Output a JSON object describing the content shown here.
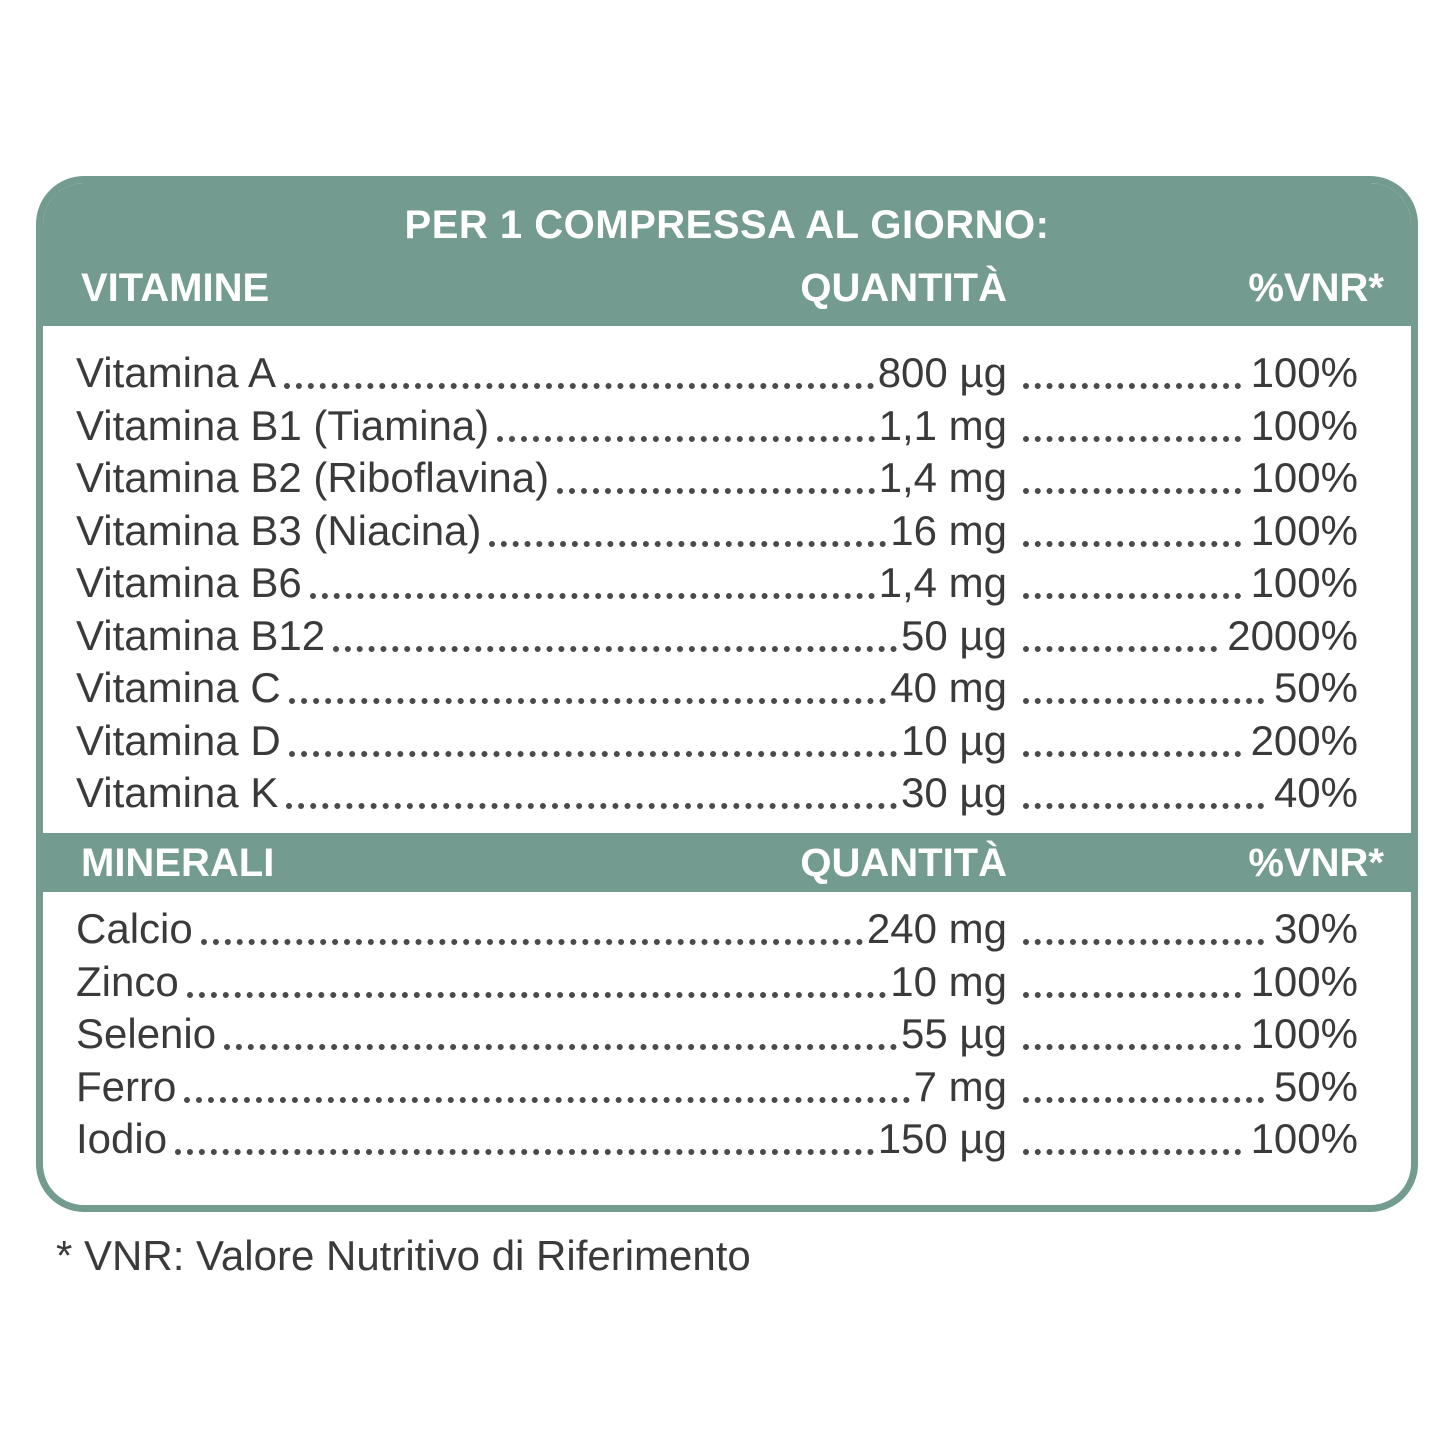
{
  "header": {
    "title": "PER 1 COMPRESSA AL GIORNO:"
  },
  "vitamins": {
    "heading": "VITAMINE",
    "qty_heading": "QUANTITÀ",
    "vnr_heading": "%VNR*",
    "rows": [
      {
        "name": "Vitamina A",
        "qty": "800 µg",
        "vnr": "100%"
      },
      {
        "name": "Vitamina B1 (Tiamina)",
        "qty": "1,1 mg",
        "vnr": "100%"
      },
      {
        "name": "Vitamina B2 (Riboflavina)",
        "qty": "1,4 mg",
        "vnr": "100%"
      },
      {
        "name": "Vitamina B3 (Niacina)",
        "qty": "16 mg",
        "vnr": "100%"
      },
      {
        "name": "Vitamina B6",
        "qty": "1,4 mg",
        "vnr": "100%"
      },
      {
        "name": "Vitamina B12",
        "qty": "50 µg",
        "vnr": "2000%"
      },
      {
        "name": "Vitamina C",
        "qty": "40 mg",
        "vnr": "50%"
      },
      {
        "name": "Vitamina D",
        "qty": "10 µg",
        "vnr": "200%"
      },
      {
        "name": "Vitamina K",
        "qty": "30 µg",
        "vnr": "40%"
      }
    ]
  },
  "minerals": {
    "heading": "MINERALI",
    "qty_heading": "QUANTITÀ",
    "vnr_heading": "%VNR*",
    "rows": [
      {
        "name": "Calcio",
        "qty": "240 mg",
        "vnr": "30%"
      },
      {
        "name": "Zinco",
        "qty": "10 mg",
        "vnr": "100%"
      },
      {
        "name": "Selenio",
        "qty": "55 µg",
        "vnr": "100%"
      },
      {
        "name": "Ferro",
        "qty": "7 mg",
        "vnr": "50%"
      },
      {
        "name": "Iodio",
        "qty": "150 µg",
        "vnr": "100%"
      }
    ]
  },
  "footnote": "* VNR: Valore Nutritivo di Riferimento",
  "colors": {
    "accent": "#739b8f",
    "text": "#3a3a3a"
  }
}
